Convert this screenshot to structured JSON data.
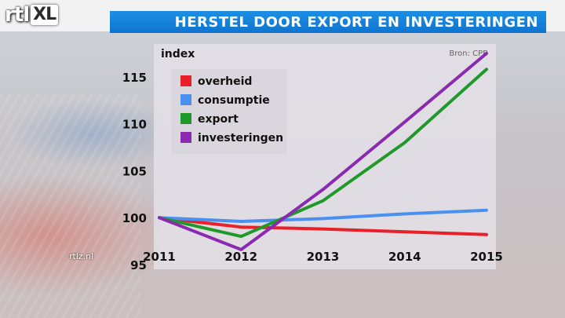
{
  "header": {
    "logo_text": "rtl",
    "logo_badge": "XL",
    "title": "HERSTEL DOOR EXPORT EN INVESTERINGEN"
  },
  "watermark": "rtlz.nl",
  "colors": {
    "overheid": "#e8202a",
    "consumptie": "#4a90f0",
    "export": "#1f9a2a",
    "investeringen": "#8a2ab0"
  },
  "chart_data": {
    "type": "line",
    "title": "HERSTEL DOOR EXPORT EN INVESTERINGEN",
    "ylabel": "index",
    "source": "Bron: CPB",
    "x": [
      2011,
      2012,
      2013,
      2014,
      2015
    ],
    "x_tick_labels": [
      "2011",
      "2012",
      "2013",
      "2014",
      "2015"
    ],
    "y_ticks": [
      95,
      100,
      105,
      110,
      115
    ],
    "ylim": [
      94.5,
      118.5
    ],
    "legend_position": "top-left",
    "series": [
      {
        "name": "overheid",
        "color": "#e8202a",
        "values": [
          100,
          99.0,
          98.8,
          98.5,
          98.2
        ]
      },
      {
        "name": "consumptie",
        "color": "#4a90f0",
        "values": [
          100,
          99.6,
          99.9,
          100.4,
          100.8
        ]
      },
      {
        "name": "export",
        "color": "#1f9a2a",
        "values": [
          100,
          98.0,
          101.8,
          108.0,
          115.8
        ]
      },
      {
        "name": "investeringen",
        "color": "#8a2ab0",
        "values": [
          100,
          96.6,
          103.0,
          110.2,
          117.5
        ]
      }
    ]
  }
}
